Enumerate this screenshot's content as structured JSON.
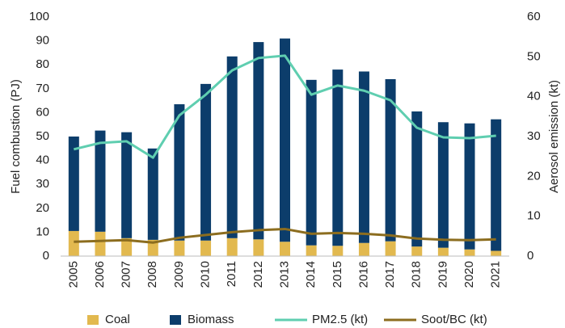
{
  "chart_data": {
    "type": "bar_line",
    "categories": [
      "2005",
      "2006",
      "2007",
      "2008",
      "2009",
      "2010",
      "2011",
      "2012",
      "2013",
      "2014",
      "2015",
      "2016",
      "2017",
      "2018",
      "2019",
      "2020",
      "2021"
    ],
    "series": [
      {
        "name": "Coal",
        "color": "#e2b94f",
        "type": "bar",
        "values": [
          10.5,
          10.2,
          7.5,
          6.8,
          6.5,
          6.5,
          7.5,
          7,
          6,
          4.5,
          4.3,
          5.5,
          6.2,
          4,
          3.5,
          2.8,
          2.2
        ]
      },
      {
        "name": "Biomass",
        "color": "#0c3d6b",
        "type": "bar",
        "values": [
          39.5,
          42.3,
          44.3,
          38.2,
          57,
          65.5,
          76,
          82.5,
          85,
          69.2,
          73.7,
          71.7,
          67.8,
          56.5,
          52.5,
          52.7,
          55
        ]
      },
      {
        "name": "PM2.5 (kt)",
        "color": "#5fceb0",
        "type": "line",
        "axis": "y2",
        "values": [
          26.8,
          28.4,
          28.8,
          24.7,
          35.3,
          40.5,
          46.6,
          49.7,
          50.3,
          40.5,
          42.8,
          41.5,
          39.1,
          32.2,
          29.8,
          29.6,
          30.2
        ]
      },
      {
        "name": "Soot/BC (kt)",
        "color": "#8c6d1f",
        "type": "line",
        "axis": "y2",
        "values": [
          3.6,
          3.8,
          4.0,
          3.4,
          4.6,
          5.3,
          6.0,
          6.5,
          6.8,
          5.6,
          5.8,
          5.6,
          5.2,
          4.4,
          4.1,
          4.0,
          4.2
        ]
      }
    ],
    "stacked": true,
    "ylabel": "Fuel combustion (PJ)",
    "y2label": "Aerosol emission (kt)",
    "ylim": [
      0,
      100
    ],
    "yticks": [
      0,
      10,
      20,
      30,
      40,
      50,
      60,
      70,
      80,
      90,
      100
    ],
    "y2lim": [
      0,
      60
    ],
    "y2ticks": [
      0,
      10,
      20,
      30,
      40,
      50,
      60
    ],
    "legend": "bottom",
    "grid": false
  }
}
